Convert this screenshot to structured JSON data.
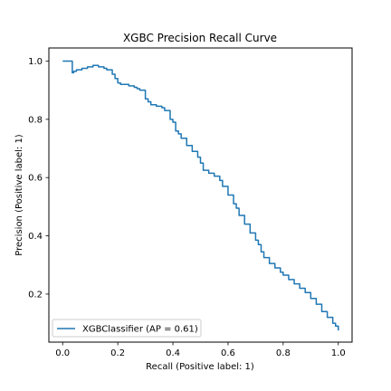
{
  "chart_data": {
    "type": "line",
    "title": "XGBC Precision Recall Curve",
    "xlabel": "Recall (Positive label: 1)",
    "ylabel": "Precision (Positive label: 1)",
    "xlim": [
      -0.05,
      1.05
    ],
    "ylim": [
      0.035,
      1.045
    ],
    "xticks": [
      0.0,
      0.2,
      0.4,
      0.6,
      0.8,
      1.0
    ],
    "xtick_labels": [
      "0.0",
      "0.2",
      "0.4",
      "0.6",
      "0.8",
      "1.0"
    ],
    "yticks": [
      0.2,
      0.4,
      0.6,
      0.8,
      1.0
    ],
    "ytick_labels": [
      "0.2",
      "0.4",
      "0.6",
      "0.8",
      "1.0"
    ],
    "grid": false,
    "legend_position": "lower-left",
    "series": [
      {
        "name": "XGBClassifier (AP = 0.61)",
        "color": "#1f77b4",
        "step": true,
        "x": [
          0.0,
          0.01,
          0.02,
          0.03,
          0.035,
          0.04,
          0.05,
          0.07,
          0.09,
          0.11,
          0.125,
          0.13,
          0.15,
          0.16,
          0.18,
          0.19,
          0.2,
          0.21,
          0.22,
          0.24,
          0.26,
          0.27,
          0.28,
          0.3,
          0.31,
          0.32,
          0.34,
          0.36,
          0.37,
          0.39,
          0.4,
          0.41,
          0.42,
          0.43,
          0.45,
          0.47,
          0.49,
          0.5,
          0.51,
          0.53,
          0.55,
          0.57,
          0.58,
          0.6,
          0.62,
          0.63,
          0.64,
          0.66,
          0.68,
          0.7,
          0.71,
          0.72,
          0.73,
          0.75,
          0.77,
          0.79,
          0.8,
          0.82,
          0.84,
          0.86,
          0.88,
          0.9,
          0.92,
          0.94,
          0.96,
          0.98,
          0.99,
          1.0
        ],
        "y": [
          1.0,
          1.0,
          1.0,
          1.0,
          0.96,
          0.965,
          0.97,
          0.975,
          0.98,
          0.985,
          0.985,
          0.98,
          0.975,
          0.97,
          0.955,
          0.94,
          0.925,
          0.92,
          0.92,
          0.915,
          0.91,
          0.905,
          0.9,
          0.87,
          0.86,
          0.85,
          0.845,
          0.84,
          0.83,
          0.8,
          0.79,
          0.76,
          0.75,
          0.735,
          0.71,
          0.69,
          0.67,
          0.65,
          0.625,
          0.615,
          0.605,
          0.59,
          0.57,
          0.54,
          0.51,
          0.495,
          0.47,
          0.44,
          0.41,
          0.385,
          0.37,
          0.345,
          0.325,
          0.305,
          0.29,
          0.275,
          0.265,
          0.25,
          0.235,
          0.22,
          0.205,
          0.185,
          0.165,
          0.14,
          0.12,
          0.1,
          0.09,
          0.075
        ]
      }
    ]
  }
}
